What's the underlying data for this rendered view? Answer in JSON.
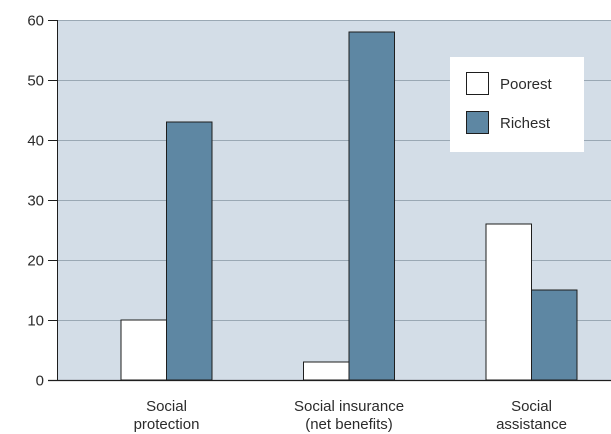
{
  "chart_data": {
    "type": "bar",
    "categories": [
      [
        "Social",
        "protection"
      ],
      [
        "Social insurance",
        "(net benefits)"
      ],
      [
        "Social",
        "assistance"
      ]
    ],
    "series": [
      {
        "name": "Poorest",
        "values": [
          10,
          3,
          26
        ],
        "color": "#ffffff"
      },
      {
        "name": "Richest",
        "values": [
          43,
          58,
          15
        ],
        "color": "#5e87a3"
      }
    ],
    "ylim": [
      0,
      60
    ],
    "yticks": [
      0,
      10,
      20,
      30,
      40,
      50,
      60
    ],
    "grid": true,
    "legend": "top-right"
  },
  "colors": {
    "plot_background": "#d3dde7",
    "axis": "#1e1e1e",
    "gridline": "#9aa8b4"
  }
}
